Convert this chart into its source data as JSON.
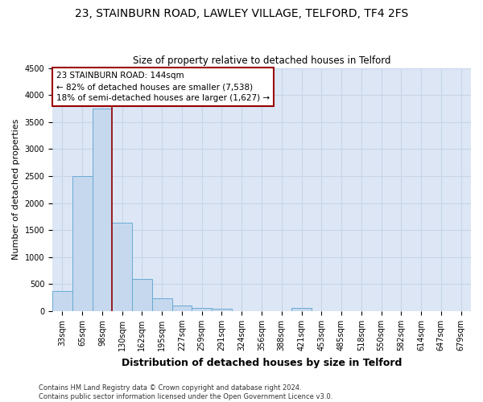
{
  "title1": "23, STAINBURN ROAD, LAWLEY VILLAGE, TELFORD, TF4 2FS",
  "title2": "Size of property relative to detached houses in Telford",
  "xlabel": "Distribution of detached houses by size in Telford",
  "ylabel": "Number of detached properties",
  "categories": [
    "33sqm",
    "65sqm",
    "98sqm",
    "130sqm",
    "162sqm",
    "195sqm",
    "227sqm",
    "259sqm",
    "291sqm",
    "324sqm",
    "356sqm",
    "388sqm",
    "421sqm",
    "453sqm",
    "485sqm",
    "518sqm",
    "550sqm",
    "582sqm",
    "614sqm",
    "647sqm",
    "679sqm"
  ],
  "values": [
    370,
    2500,
    3750,
    1640,
    590,
    235,
    110,
    65,
    40,
    0,
    0,
    0,
    60,
    0,
    0,
    0,
    0,
    0,
    0,
    0,
    0
  ],
  "bar_color": "#c5d8ee",
  "bar_edge_color": "#6aaad4",
  "grid_color": "#c8d4e8",
  "background_color": "#dce6f5",
  "vline_pos": 2.5,
  "vline_color": "#990000",
  "annotation_text": "23 STAINBURN ROAD: 144sqm\n← 82% of detached houses are smaller (7,538)\n18% of semi-detached houses are larger (1,627) →",
  "annotation_box_facecolor": "#ffffff",
  "annotation_box_edgecolor": "#990000",
  "ylim": [
    0,
    4500
  ],
  "yticks": [
    0,
    500,
    1000,
    1500,
    2000,
    2500,
    3000,
    3500,
    4000,
    4500
  ],
  "footnote": "Contains HM Land Registry data © Crown copyright and database right 2024.\nContains public sector information licensed under the Open Government Licence v3.0.",
  "title1_fontsize": 10,
  "title2_fontsize": 8.5,
  "xlabel_fontsize": 9,
  "ylabel_fontsize": 8,
  "tick_fontsize": 7,
  "annot_fontsize": 7.5,
  "footnote_fontsize": 6
}
